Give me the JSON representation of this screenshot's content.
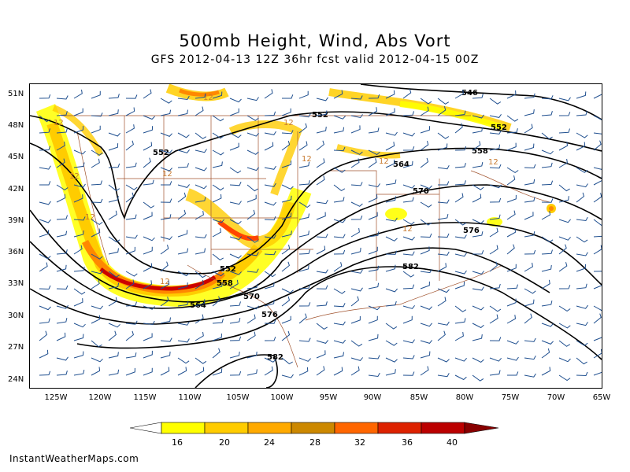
{
  "title": "500mb Height, Wind, Abs Vort",
  "subtitle": "GFS 2012-04-13 12Z 36hr fcst valid 2012-04-15 00Z",
  "lat_labels": [
    "51N",
    "48N",
    "45N",
    "42N",
    "39N",
    "36N",
    "33N",
    "30N",
    "27N",
    "24N"
  ],
  "lon_labels": [
    "125W",
    "120W",
    "115W",
    "110W",
    "105W",
    "100W",
    "95W",
    "90W",
    "85W",
    "80W",
    "75W",
    "70W",
    "65W"
  ],
  "height_contours": [
    "546",
    "552",
    "558",
    "564",
    "570",
    "576",
    "582"
  ],
  "height_labels": {
    "l546_top": "546",
    "l552_top": "552",
    "l558_top": "558",
    "l564_top": "564",
    "l570_top": "570",
    "l576_top": "576",
    "l582_top": "582",
    "l552_w": "552",
    "l552_s": "552",
    "l558_s": "558",
    "l564_s": "564",
    "l570_s": "570",
    "l576_s": "576",
    "l582_s": "582"
  },
  "vort_labels": [
    "12",
    "12",
    "12",
    "12",
    "12",
    "12",
    "12",
    "12",
    "12",
    "12",
    "12"
  ],
  "colorbar": {
    "labels": [
      "16",
      "20",
      "24",
      "28",
      "32",
      "36",
      "40"
    ],
    "colors": [
      "#ffffff",
      "#ffff00",
      "#ffcc00",
      "#cc8800",
      "#ff8800",
      "#ff4400",
      "#cc0000",
      "#990000"
    ]
  },
  "credit": "InstantWeatherMaps.com",
  "colors": {
    "contour": "#000000",
    "borders": "#a0522d",
    "wind_barbs": "#1f4f8f",
    "vort_contour": "#c87a30"
  }
}
